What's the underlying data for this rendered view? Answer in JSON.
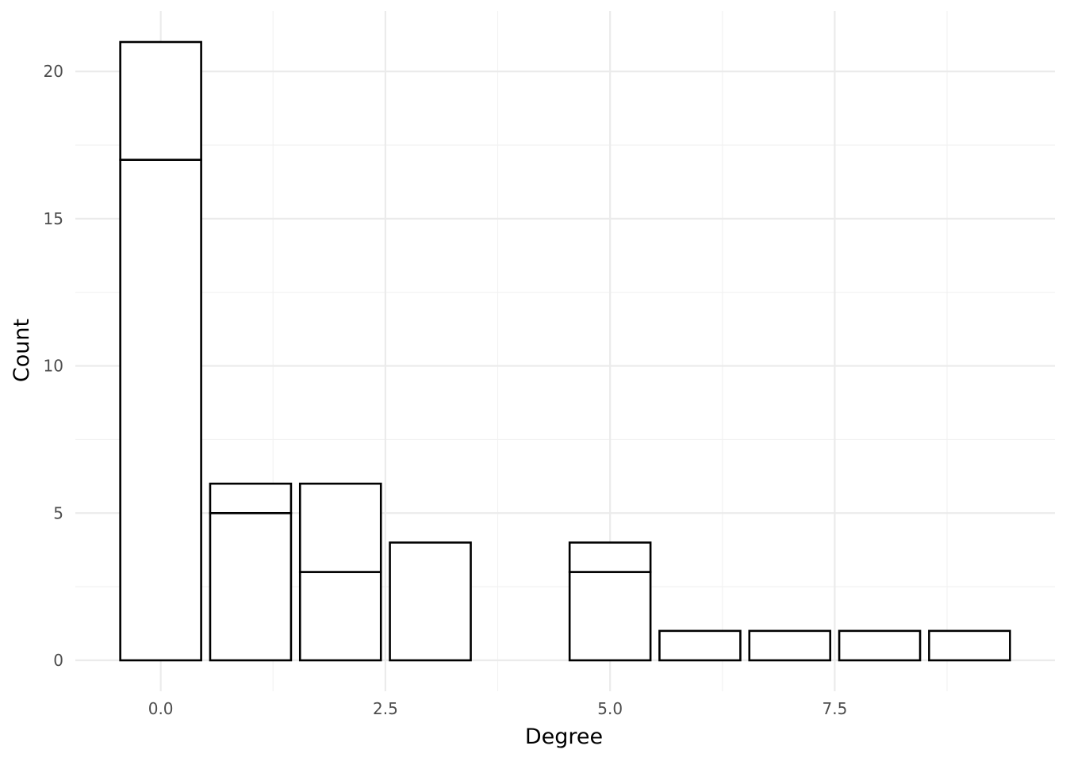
{
  "chart_data": {
    "type": "bar",
    "subtype": "stacked-histogram",
    "xlabel": "Degree",
    "ylabel": "Count",
    "x_ticks": [
      "0.0",
      "2.5",
      "5.0",
      "7.5"
    ],
    "x_tick_values": [
      0,
      2.5,
      5,
      7.5
    ],
    "y_ticks": [
      "0",
      "5",
      "10",
      "15",
      "20"
    ],
    "y_tick_values": [
      0,
      5,
      10,
      15,
      20
    ],
    "xlim": [
      -0.95,
      9.95
    ],
    "ylim": [
      -1.05,
      22.05
    ],
    "bar_width": 0.9,
    "bins": [
      {
        "x": 0,
        "segments": [
          17,
          4
        ]
      },
      {
        "x": 1,
        "segments": [
          5,
          1
        ]
      },
      {
        "x": 2,
        "segments": [
          3,
          3
        ]
      },
      {
        "x": 3,
        "segments": [
          4
        ]
      },
      {
        "x": 5,
        "segments": [
          3,
          1
        ]
      },
      {
        "x": 6,
        "segments": [
          1
        ]
      },
      {
        "x": 7,
        "segments": [
          1
        ]
      },
      {
        "x": 8,
        "segments": [
          1
        ]
      },
      {
        "x": 9,
        "segments": [
          1
        ]
      }
    ],
    "grid": true,
    "legend": "none"
  }
}
